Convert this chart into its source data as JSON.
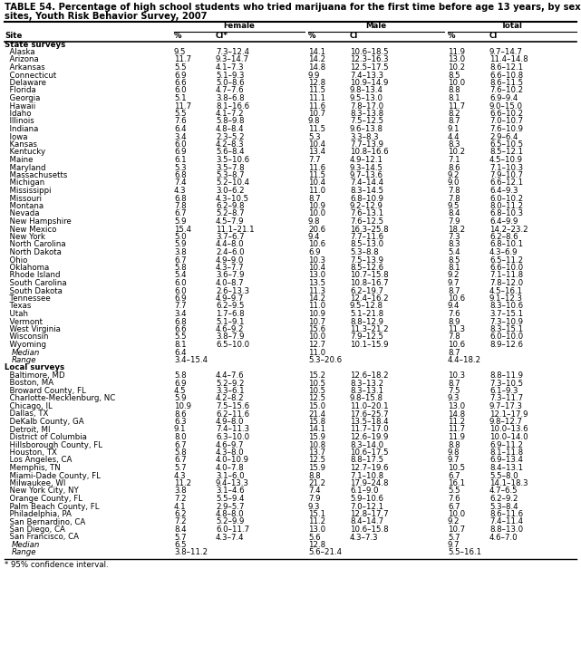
{
  "title1": "TABLE 54. Percentage of high school students who tried marijuana for the first time before age 13 years, by sex — selected U.S.",
  "title2": "sites, Youth Risk Behavior Survey, 2007",
  "headers": [
    "Site",
    "%",
    "CI*",
    "%",
    "CI",
    "%",
    "CI"
  ],
  "col_groups": [
    "Female",
    "Male",
    "Total"
  ],
  "state_rows": [
    [
      "Alaska",
      "9.5",
      "7.3–12.4",
      "14.1",
      "10.6–18.5",
      "11.9",
      "9.7–14.7"
    ],
    [
      "Arizona",
      "11.7",
      "9.3–14.7",
      "14.2",
      "12.3–16.3",
      "13.0",
      "11.4–14.8"
    ],
    [
      "Arkansas",
      "5.5",
      "4.1–7.3",
      "14.8",
      "12.5–17.5",
      "10.2",
      "8.6–12.1"
    ],
    [
      "Connecticut",
      "6.9",
      "5.1–9.3",
      "9.9",
      "7.4–13.3",
      "8.5",
      "6.6–10.8"
    ],
    [
      "Delaware",
      "6.6",
      "5.0–8.6",
      "12.8",
      "10.9–14.9",
      "10.0",
      "8.6–11.5"
    ],
    [
      "Florida",
      "6.0",
      "4.7–7.6",
      "11.5",
      "9.8–13.4",
      "8.8",
      "7.6–10.2"
    ],
    [
      "Georgia",
      "5.1",
      "3.8–6.8",
      "11.1",
      "9.5–13.0",
      "8.1",
      "6.9–9.4"
    ],
    [
      "Hawaii",
      "11.7",
      "8.1–16.6",
      "11.6",
      "7.8–17.0",
      "11.7",
      "9.0–15.0"
    ],
    [
      "Idaho",
      "5.5",
      "4.1–7.2",
      "10.7",
      "8.3–13.8",
      "8.2",
      "6.6–10.2"
    ],
    [
      "Illinois",
      "7.6",
      "5.8–9.8",
      "9.8",
      "7.5–12.5",
      "8.7",
      "7.0–10.7"
    ],
    [
      "Indiana",
      "6.4",
      "4.8–8.4",
      "11.5",
      "9.6–13.8",
      "9.1",
      "7.6–10.9"
    ],
    [
      "Iowa",
      "3.4",
      "2.3–5.2",
      "5.3",
      "3.3–8.3",
      "4.4",
      "2.9–6.4"
    ],
    [
      "Kansas",
      "6.0",
      "4.2–8.3",
      "10.4",
      "7.7–13.9",
      "8.3",
      "6.5–10.5"
    ],
    [
      "Kentucky",
      "6.9",
      "5.6–8.4",
      "13.4",
      "10.8–16.6",
      "10.2",
      "8.5–12.1"
    ],
    [
      "Maine",
      "6.1",
      "3.5–10.6",
      "7.7",
      "4.9–12.1",
      "7.1",
      "4.5–10.9"
    ],
    [
      "Maryland",
      "5.3",
      "3.5–7.8",
      "11.6",
      "9.3–14.5",
      "8.6",
      "7.1–10.3"
    ],
    [
      "Massachusetts",
      "6.8",
      "5.3–8.7",
      "11.5",
      "9.7–13.6",
      "9.2",
      "7.9–10.7"
    ],
    [
      "Michigan",
      "7.4",
      "5.2–10.4",
      "10.4",
      "7.4–14.4",
      "9.0",
      "6.6–12.1"
    ],
    [
      "Mississippi",
      "4.3",
      "3.0–6.2",
      "11.0",
      "8.3–14.5",
      "7.8",
      "6.4–9.3"
    ],
    [
      "Missouri",
      "6.8",
      "4.3–10.5",
      "8.7",
      "6.8–10.9",
      "7.8",
      "6.0–10.2"
    ],
    [
      "Montana",
      "7.8",
      "6.2–9.8",
      "10.9",
      "9.2–12.9",
      "9.5",
      "8.0–11.2"
    ],
    [
      "Nevada",
      "6.7",
      "5.2–8.7",
      "10.0",
      "7.6–13.1",
      "8.4",
      "6.8–10.3"
    ],
    [
      "New Hampshire",
      "5.9",
      "4.5–7.9",
      "9.8",
      "7.6–12.5",
      "7.9",
      "6.4–9.9"
    ],
    [
      "New Mexico",
      "15.4",
      "11.1–21.1",
      "20.6",
      "16.3–25.8",
      "18.2",
      "14.2–23.2"
    ],
    [
      "New York",
      "5.0",
      "3.7–6.7",
      "9.4",
      "7.7–11.6",
      "7.3",
      "6.2–8.6"
    ],
    [
      "North Carolina",
      "5.9",
      "4.4–8.0",
      "10.6",
      "8.5–13.0",
      "8.3",
      "6.8–10.1"
    ],
    [
      "North Dakota",
      "3.8",
      "2.4–6.0",
      "6.9",
      "5.3–8.8",
      "5.4",
      "4.3–6.9"
    ],
    [
      "Ohio",
      "6.7",
      "4.9–9.0",
      "10.3",
      "7.5–13.9",
      "8.5",
      "6.5–11.2"
    ],
    [
      "Oklahoma",
      "5.8",
      "4.3–7.7",
      "10.4",
      "8.5–12.6",
      "8.1",
      "6.6–10.0"
    ],
    [
      "Rhode Island",
      "5.4",
      "3.6–7.9",
      "13.0",
      "10.7–15.8",
      "9.2",
      "7.1–11.8"
    ],
    [
      "South Carolina",
      "6.0",
      "4.0–8.7",
      "13.5",
      "10.8–16.7",
      "9.7",
      "7.8–12.0"
    ],
    [
      "South Dakota",
      "6.0",
      "2.6–13.3",
      "11.3",
      "6.2–19.7",
      "8.7",
      "4.5–16.1"
    ],
    [
      "Tennessee",
      "6.9",
      "4.9–9.7",
      "14.2",
      "12.4–16.2",
      "10.6",
      "9.1–12.3"
    ],
    [
      "Texas",
      "7.7",
      "6.2–9.5",
      "11.0",
      "9.5–12.8",
      "9.4",
      "8.3–10.6"
    ],
    [
      "Utah",
      "3.4",
      "1.7–6.8",
      "10.9",
      "5.1–21.8",
      "7.6",
      "3.7–15.1"
    ],
    [
      "Vermont",
      "6.8",
      "5.1–9.1",
      "10.7",
      "8.8–12.9",
      "8.9",
      "7.3–10.9"
    ],
    [
      "West Virginia",
      "6.6",
      "4.6–9.2",
      "15.6",
      "11.3–21.2",
      "11.3",
      "8.3–15.1"
    ],
    [
      "Wisconsin",
      "5.5",
      "3.8–7.9",
      "10.0",
      "7.9–12.5",
      "7.8",
      "6.0–10.0"
    ],
    [
      "Wyoming",
      "8.1",
      "6.5–10.0",
      "12.7",
      "10.1–15.9",
      "10.6",
      "8.9–12.6"
    ]
  ],
  "state_median": [
    "Median",
    "6.4",
    "",
    "11.0",
    "",
    "8.7",
    ""
  ],
  "state_range": [
    "Range",
    "3.4–15.4",
    "",
    "5.3–20.6",
    "",
    "4.4–18.2",
    ""
  ],
  "local_rows": [
    [
      "Baltimore, MD",
      "5.8",
      "4.4–7.6",
      "15.2",
      "12.6–18.2",
      "10.3",
      "8.8–11.9"
    ],
    [
      "Boston, MA",
      "6.9",
      "5.2–9.2",
      "10.5",
      "8.3–13.2",
      "8.7",
      "7.3–10.5"
    ],
    [
      "Broward County, FL",
      "4.5",
      "3.3–6.1",
      "10.5",
      "8.3–13.1",
      "7.5",
      "6.1–9.3"
    ],
    [
      "Charlotte-Mecklenburg, NC",
      "5.9",
      "4.2–8.2",
      "12.5",
      "9.8–15.8",
      "9.3",
      "7.3–11.7"
    ],
    [
      "Chicago, IL",
      "10.9",
      "7.5–15.6",
      "15.0",
      "11.0–20.1",
      "13.0",
      "9.7–17.3"
    ],
    [
      "Dallas, TX",
      "8.6",
      "6.2–11.6",
      "21.4",
      "17.6–25.7",
      "14.8",
      "12.1–17.9"
    ],
    [
      "DeKalb County, GA",
      "6.3",
      "4.9–8.0",
      "15.8",
      "13.5–18.4",
      "11.2",
      "9.8–12.7"
    ],
    [
      "Detroit, MI",
      "9.1",
      "7.4–11.3",
      "14.1",
      "11.7–17.0",
      "11.7",
      "10.0–13.6"
    ],
    [
      "District of Columbia",
      "8.0",
      "6.3–10.0",
      "15.9",
      "12.6–19.9",
      "11.9",
      "10.0–14.0"
    ],
    [
      "Hillsborough County, FL",
      "6.7",
      "4.6–9.7",
      "10.8",
      "8.3–14.0",
      "8.8",
      "6.9–11.2"
    ],
    [
      "Houston, TX",
      "5.8",
      "4.3–8.0",
      "13.7",
      "10.6–17.5",
      "9.8",
      "8.1–11.8"
    ],
    [
      "Los Angeles, CA",
      "6.7",
      "4.0–10.9",
      "12.5",
      "8.8–17.5",
      "9.7",
      "6.9–13.4"
    ],
    [
      "Memphis, TN",
      "5.7",
      "4.0–7.8",
      "15.9",
      "12.7–19.6",
      "10.5",
      "8.4–13.1"
    ],
    [
      "Miami-Dade County, FL",
      "4.3",
      "3.1–6.0",
      "8.8",
      "7.1–10.8",
      "6.7",
      "5.5–8.0"
    ],
    [
      "Milwaukee, WI",
      "11.2",
      "9.4–13.3",
      "21.2",
      "17.9–24.8",
      "16.1",
      "14.1–18.3"
    ],
    [
      "New York City, NY",
      "3.8",
      "3.1–4.6",
      "7.4",
      "6.1–9.0",
      "5.5",
      "4.7–6.5"
    ],
    [
      "Orange County, FL",
      "7.2",
      "5.5–9.4",
      "7.9",
      "5.9–10.6",
      "7.6",
      "6.2–9.2"
    ],
    [
      "Palm Beach County, FL",
      "4.1",
      "2.9–5.7",
      "9.3",
      "7.0–12.1",
      "6.7",
      "5.3–8.4"
    ],
    [
      "Philadelphia, PA",
      "6.2",
      "4.8–8.0",
      "15.1",
      "12.8–17.7",
      "10.0",
      "8.6–11.6"
    ],
    [
      "San Bernardino, CA",
      "7.2",
      "5.2–9.9",
      "11.2",
      "8.4–14.7",
      "9.2",
      "7.4–11.4"
    ],
    [
      "San Diego, CA",
      "8.4",
      "6.0–11.7",
      "13.0",
      "10.6–15.8",
      "10.7",
      "8.8–13.0"
    ],
    [
      "San Francisco, CA",
      "5.7",
      "4.3–7.4",
      "5.6",
      "4.3–7.3",
      "5.7",
      "4.6–7.0"
    ]
  ],
  "local_median": [
    "Median",
    "6.5",
    "",
    "12.8",
    "",
    "9.7",
    ""
  ],
  "local_range": [
    "Range",
    "3.8–11.2",
    "",
    "5.6–21.4",
    "",
    "5.5–16.1",
    ""
  ],
  "footnote": "* 95% confidence interval.",
  "bg_color": "#FFFFFF",
  "text_color": "#000000",
  "font_size": 6.2,
  "title_font_size": 7.2
}
